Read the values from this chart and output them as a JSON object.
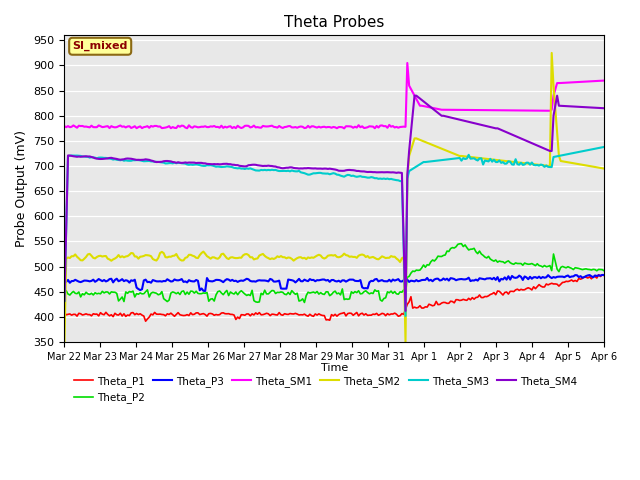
{
  "title": "Theta Probes",
  "ylabel": "Probe Output (mV)",
  "xlabel": "Time",
  "ylim": [
    350,
    960
  ],
  "background_color": "#e8e8e8",
  "annotation_text": "SI_mixed",
  "annotation_color": "#8B0000",
  "annotation_bg": "#ffff99",
  "series": {
    "Theta_P1": {
      "color": "#ff0000",
      "lw": 1.2
    },
    "Theta_P2": {
      "color": "#00dd00",
      "lw": 1.2
    },
    "Theta_P3": {
      "color": "#0000ff",
      "lw": 1.5
    },
    "Theta_SM1": {
      "color": "#ff00ff",
      "lw": 1.5
    },
    "Theta_SM2": {
      "color": "#dddd00",
      "lw": 1.5
    },
    "Theta_SM3": {
      "color": "#00cccc",
      "lw": 1.5
    },
    "Theta_SM4": {
      "color": "#8800cc",
      "lw": 1.5
    }
  },
  "n_points": 300,
  "tick_labels": [
    "Mar 22",
    "Mar 23",
    "Mar 24",
    "Mar 25",
    "Mar 26",
    "Mar 27",
    "Mar 28",
    "Mar 29",
    "Mar 30",
    "Mar 31",
    "Apr 1",
    "Apr 2",
    "Apr 3",
    "Apr 4",
    "Apr 5",
    "Apr 6"
  ],
  "yticks": [
    350,
    400,
    450,
    500,
    550,
    600,
    650,
    700,
    750,
    800,
    850,
    900,
    950
  ]
}
